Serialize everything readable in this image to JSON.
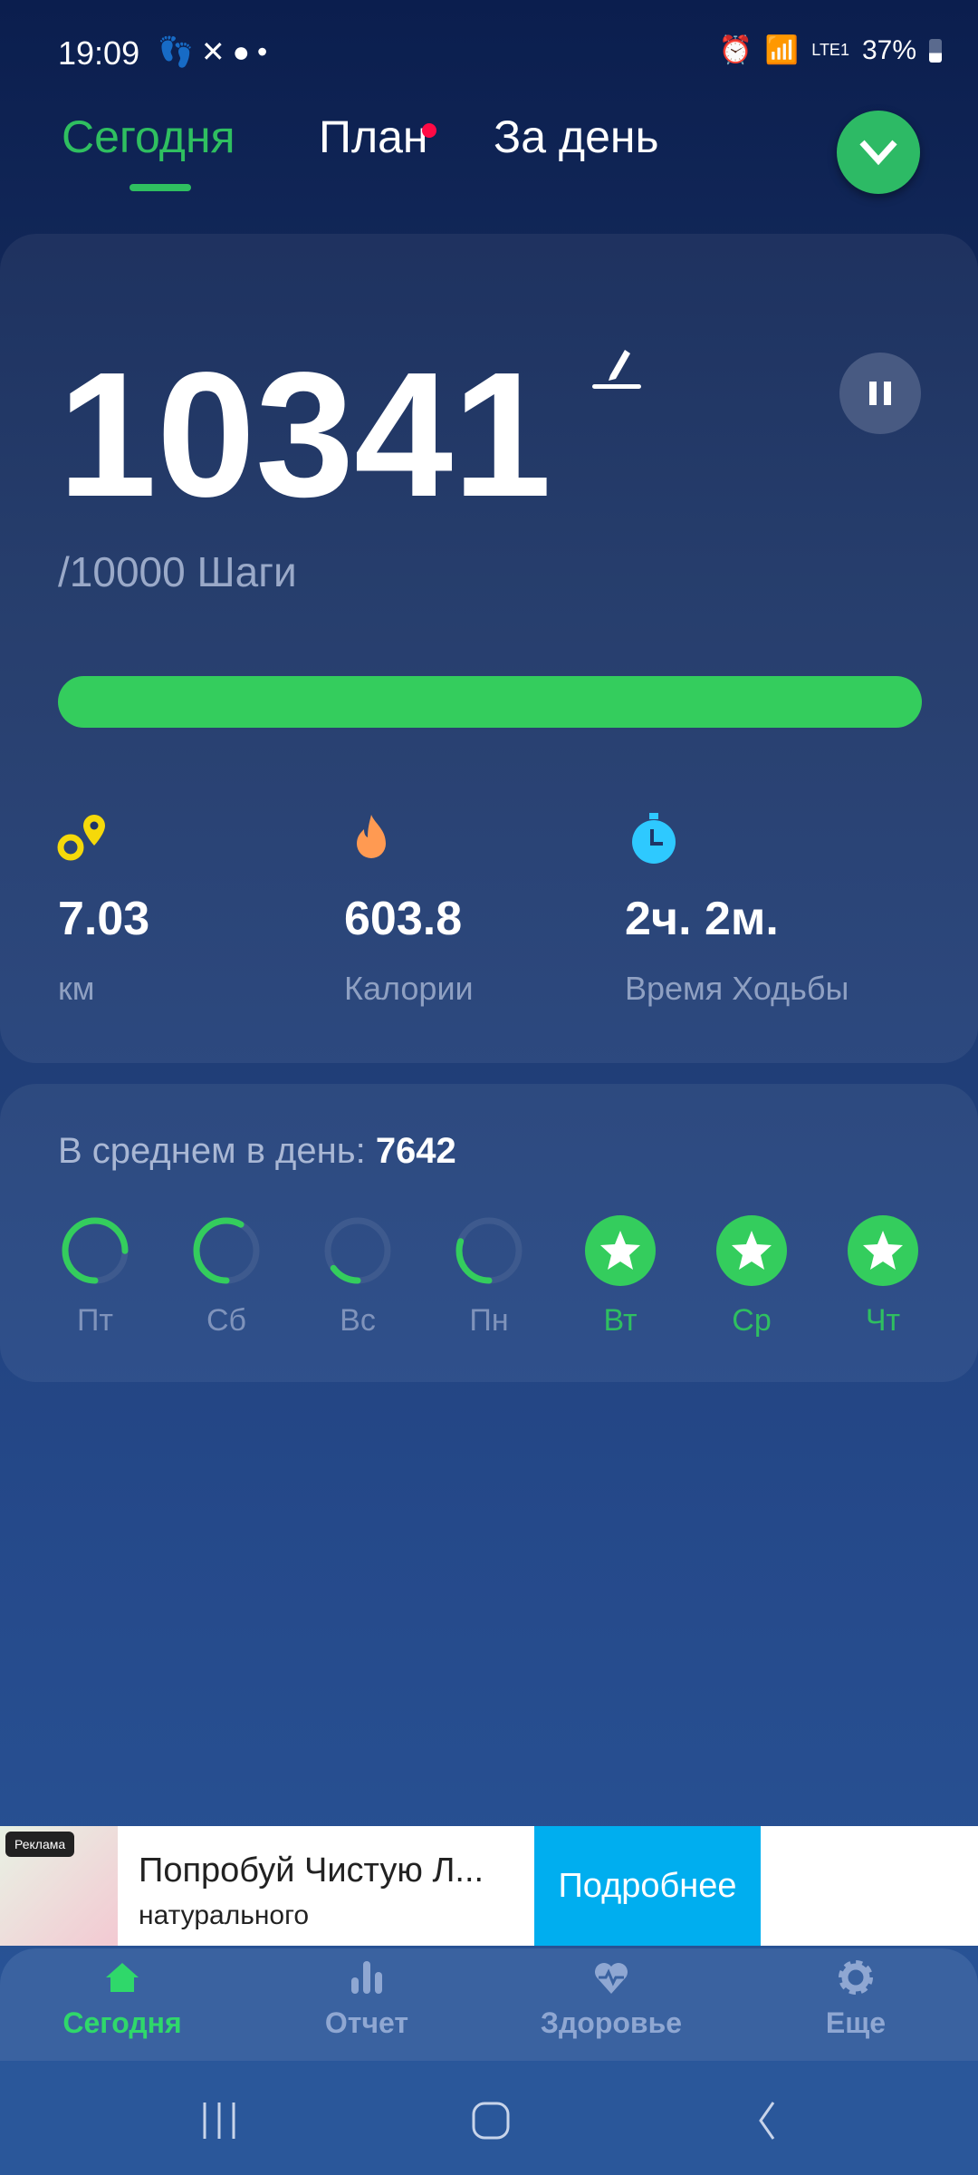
{
  "status_bar": {
    "time": "19:09",
    "battery": "37%",
    "network": "LTE1"
  },
  "tabs": [
    {
      "label": "Сегодня",
      "active": true
    },
    {
      "label": "План",
      "badge": true
    },
    {
      "label": "За день"
    }
  ],
  "today": {
    "steps": "10341",
    "goal": "/10000 Шаги",
    "progress_percent": 100,
    "stats": [
      {
        "icon": "location-pins-icon",
        "value": "7.03",
        "label": "км",
        "color": "#f5d90a"
      },
      {
        "icon": "flame-icon",
        "value": "603.8",
        "label": "Калории",
        "color": "#ff9a52"
      },
      {
        "icon": "stopwatch-icon",
        "value": "2ч. 2м.",
        "label": "Время Ходьбы",
        "color": "#2ec9ff"
      }
    ]
  },
  "average": {
    "label": "В среднем в день: ",
    "value": "7642"
  },
  "week": [
    {
      "day": "Пт",
      "progress": 0.75,
      "done": false
    },
    {
      "day": "Сб",
      "progress": 0.58,
      "done": false
    },
    {
      "day": "Вс",
      "progress": 0.15,
      "done": false
    },
    {
      "day": "Пн",
      "progress": 0.3,
      "done": false
    },
    {
      "day": "Вт",
      "progress": 1,
      "done": true
    },
    {
      "day": "Ср",
      "progress": 1,
      "done": true
    },
    {
      "day": "Чт",
      "progress": 1,
      "done": true
    }
  ],
  "ad": {
    "label": "Реклама",
    "title": "Попробуй Чистую Л...",
    "subtitle": "натурального",
    "button": "Подробнее"
  },
  "bottom_nav": [
    {
      "label": "Сегодня",
      "icon": "home-icon",
      "active": true
    },
    {
      "label": "Отчет",
      "icon": "bar-chart-icon"
    },
    {
      "label": "Здоровье",
      "icon": "heart-pulse-icon"
    },
    {
      "label": "Еще",
      "icon": "gear-icon"
    }
  ],
  "colors": {
    "accent": "#2fbf60",
    "progress": "#34cd5d",
    "ad_button": "#00aeef"
  }
}
